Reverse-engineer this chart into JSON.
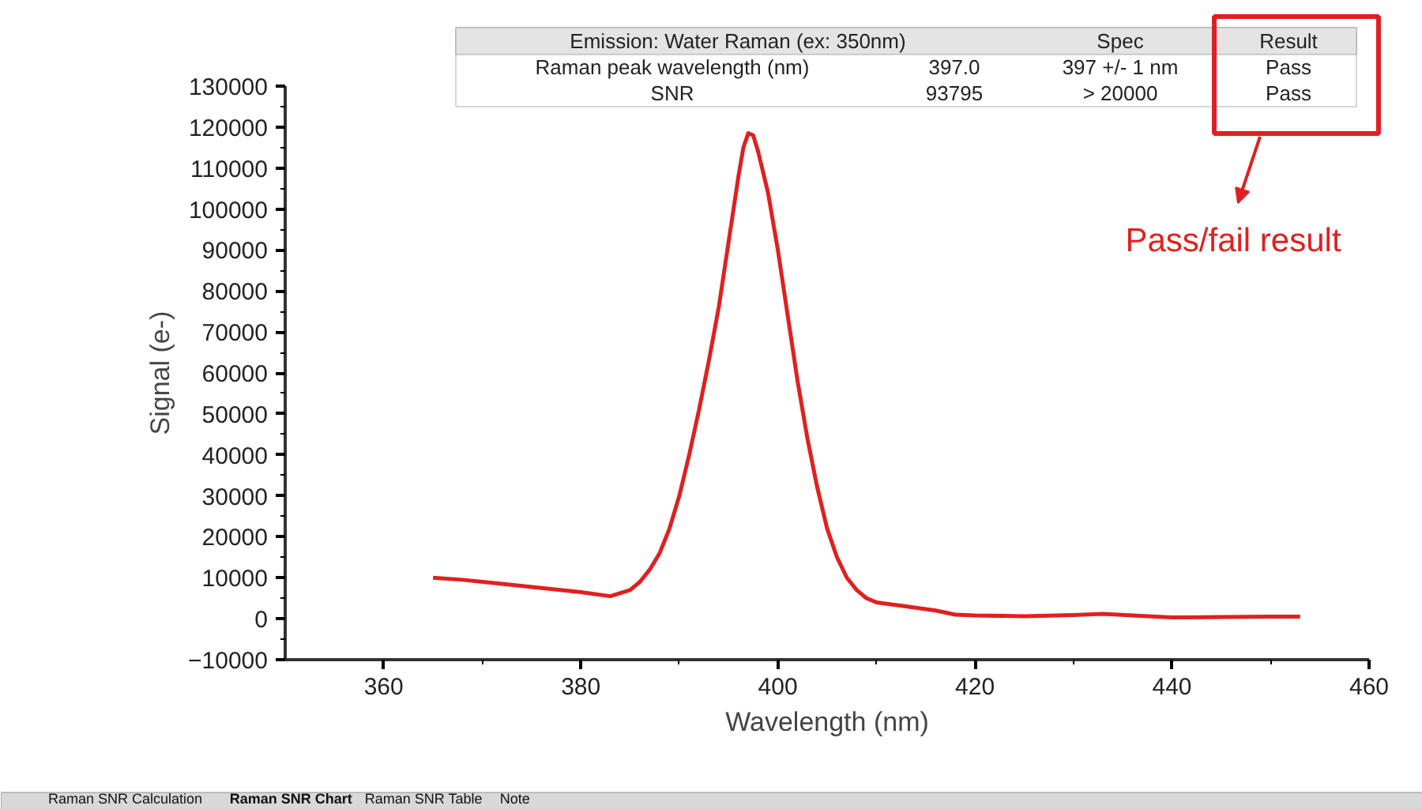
{
  "chart_data": {
    "type": "line",
    "xlabel": "Wavelength (nm)",
    "ylabel": "Signal (e-)",
    "xlim": [
      350,
      460
    ],
    "xticks": [
      360,
      380,
      400,
      420,
      440,
      460
    ],
    "ylim": [
      -10000,
      130000
    ],
    "yticks": [
      -10000,
      0,
      10000,
      20000,
      30000,
      40000,
      50000,
      60000,
      70000,
      80000,
      90000,
      100000,
      110000,
      120000,
      130000
    ],
    "marker": "none",
    "line_style": "solid",
    "series": [
      {
        "color": "#e02020",
        "x": [
          365,
          368,
          372,
          376,
          380,
          383,
          385,
          386,
          387,
          388,
          389,
          390,
          391,
          392,
          393,
          394,
          395,
          396,
          396.5,
          397,
          397.5,
          398,
          399,
          400,
          401,
          402,
          403,
          404,
          405,
          406,
          407,
          408,
          409,
          410,
          413,
          416,
          418,
          420,
          425,
          430,
          433,
          436,
          440,
          445,
          450,
          453
        ],
        "values": [
          10000,
          9500,
          8500,
          7500,
          6500,
          5500,
          7000,
          9000,
          12000,
          16000,
          22000,
          30000,
          40000,
          51000,
          63000,
          76000,
          92000,
          108000,
          115000,
          118500,
          118000,
          114000,
          104000,
          90000,
          74000,
          58000,
          44000,
          32000,
          22000,
          15000,
          10000,
          7000,
          5000,
          4000,
          3000,
          2000,
          1000,
          800,
          600,
          900,
          1200,
          800,
          300,
          400,
          500,
          500
        ]
      }
    ],
    "annotations": [
      "Emission: Water Raman (ex: 350nm)",
      "Spec",
      "Result",
      "Raman peak wavelength (nm)",
      "397.0",
      "397 +/- 1 nm",
      "Pass",
      "SNR",
      "93795",
      "> 20000",
      "Pass",
      "Pass/fail result",
      "Raman SNR Calculation",
      "Raman SNR Chart",
      "Raman SNR Table",
      "Note"
    ]
  }
}
